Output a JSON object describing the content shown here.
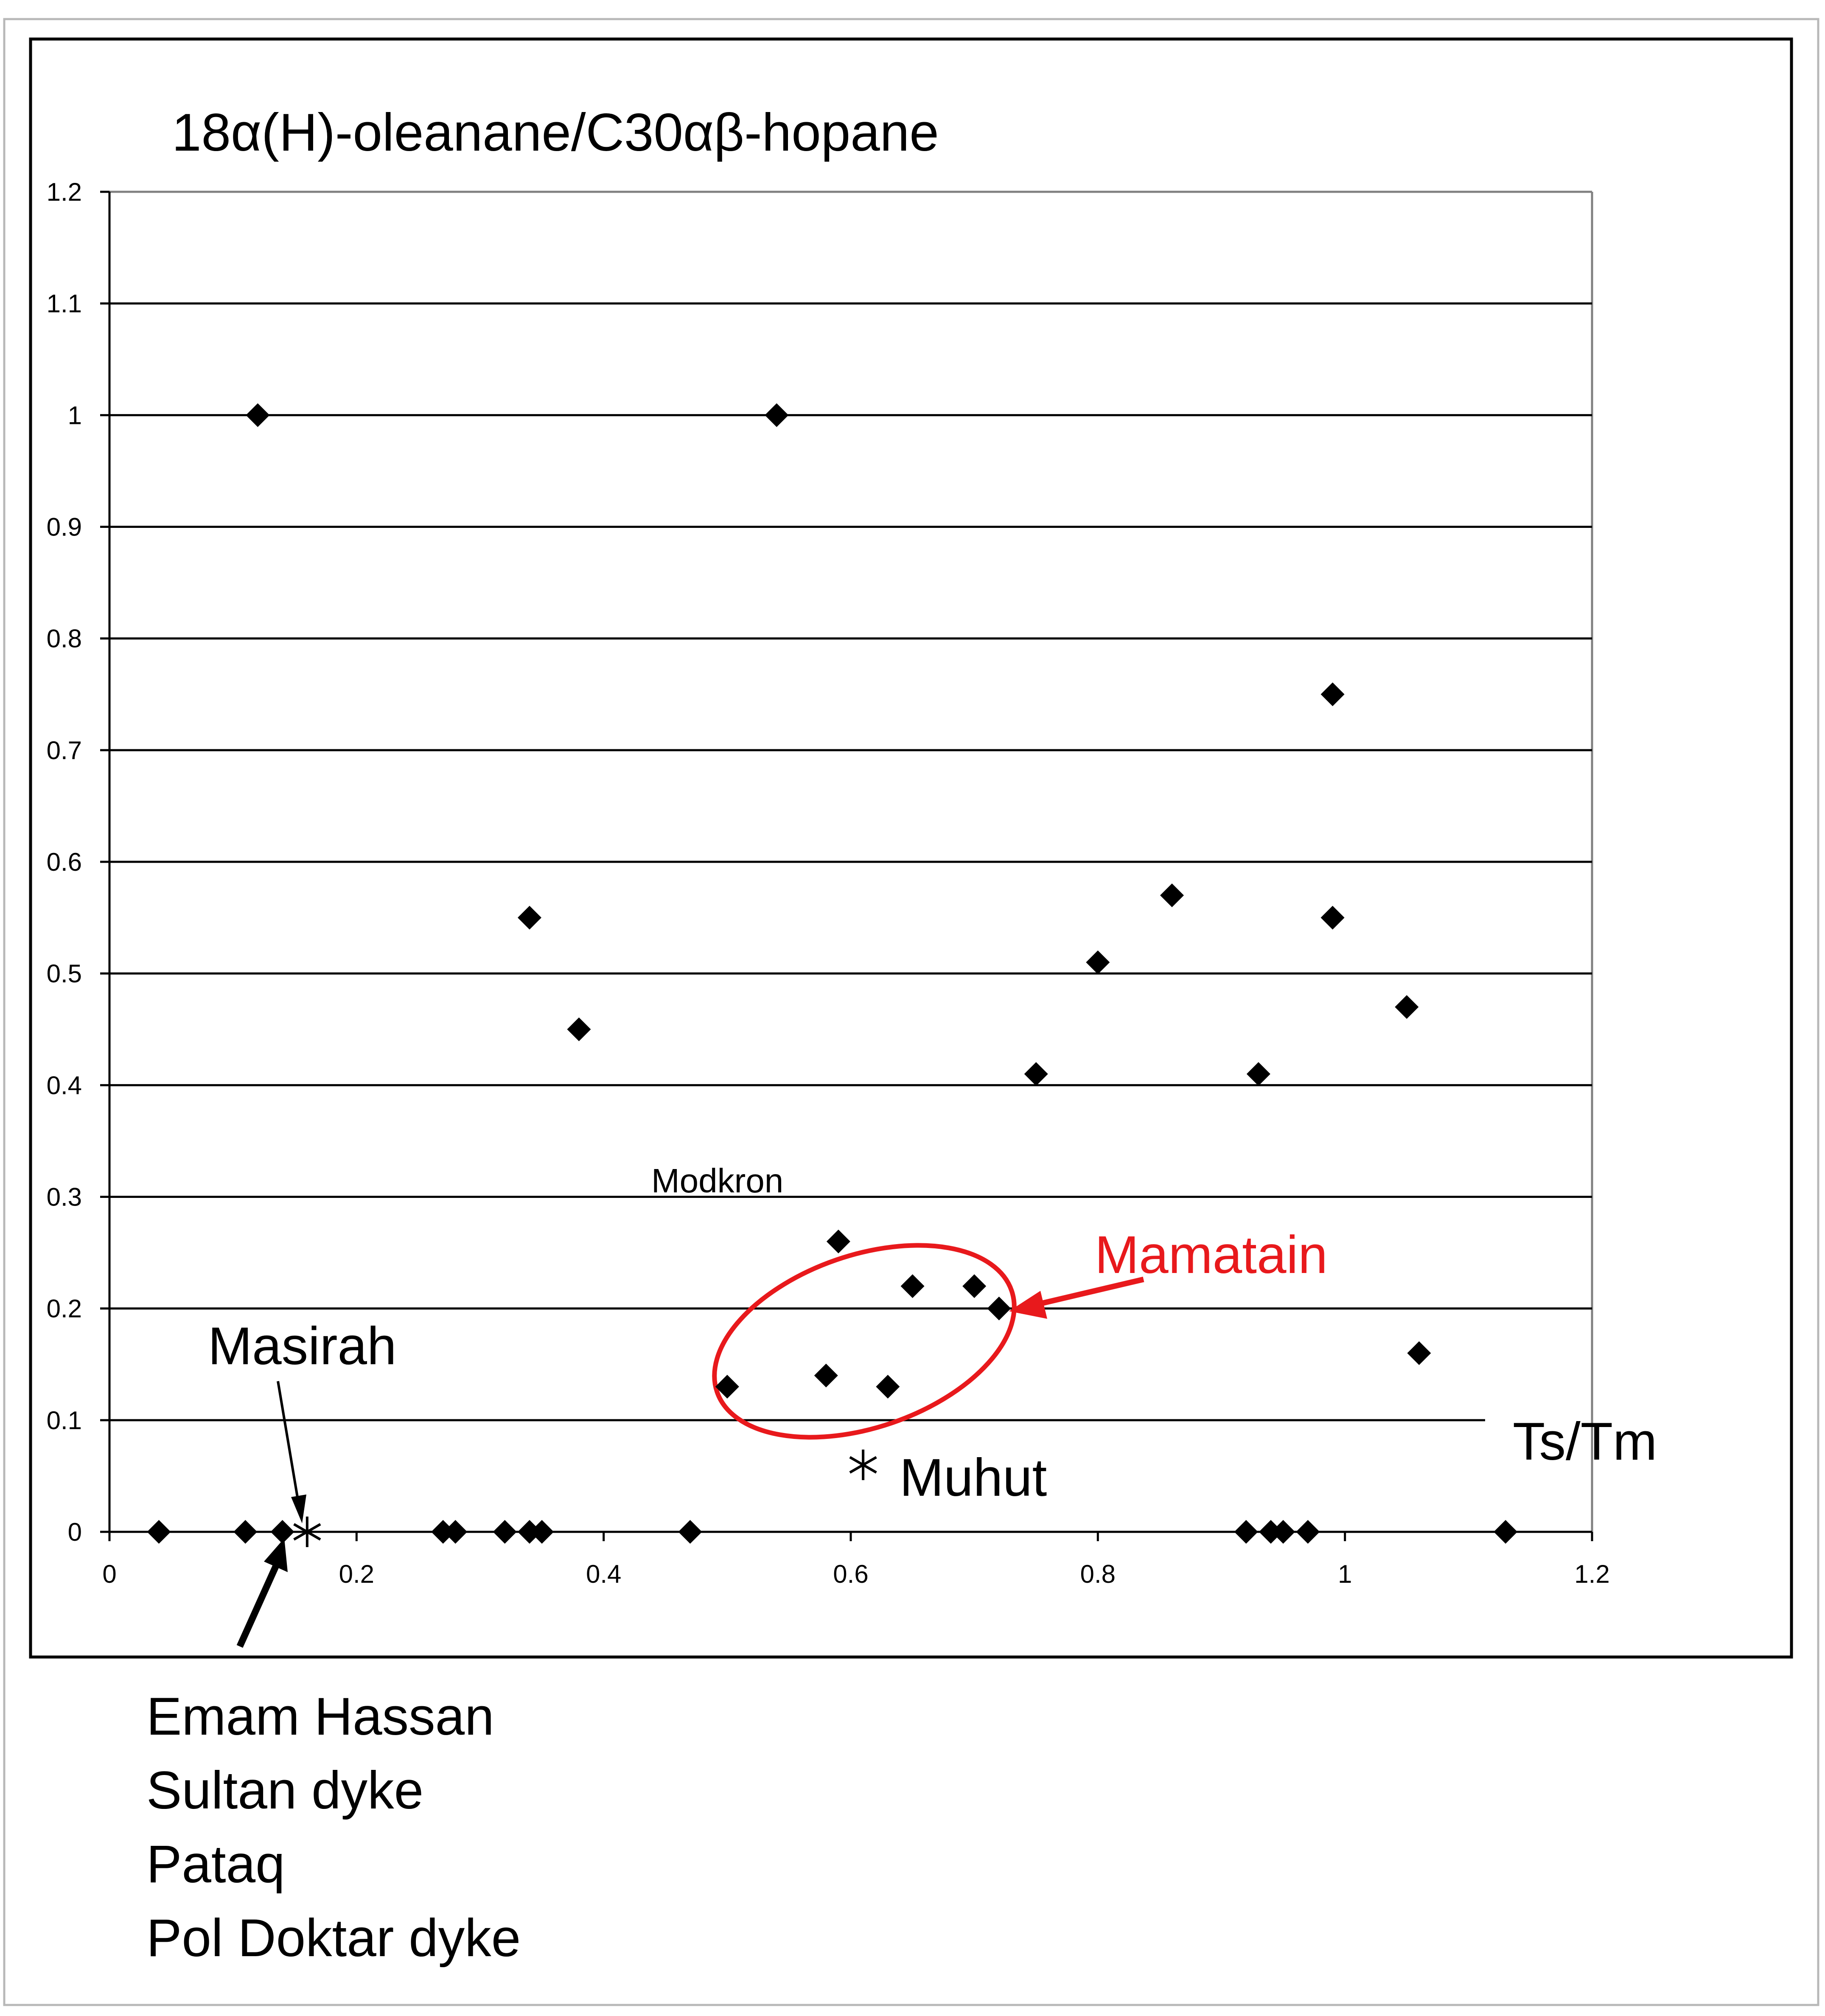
{
  "chart_data": {
    "type": "scatter",
    "title": "18α(H)-oleanane/C30αβ-hopane",
    "xlabel": "Ts/Tm",
    "ylabel": "",
    "xlim": [
      0,
      1.2
    ],
    "ylim": [
      0,
      1.2
    ],
    "xticks": [
      "0",
      "0.2",
      "0.4",
      "0.6",
      "0.8",
      "1",
      "1.2"
    ],
    "yticks": [
      "0",
      "0.1",
      "0.2",
      "0.3",
      "0.4",
      "0.5",
      "0.6",
      "0.7",
      "0.8",
      "0.9",
      "1",
      "1.1",
      "1.2"
    ],
    "grid": "horizontal",
    "series": [
      {
        "marker": "diamond",
        "color": "#000000",
        "points": [
          {
            "x": 0.04,
            "y": 0
          },
          {
            "x": 0.11,
            "y": 0
          },
          {
            "x": 0.14,
            "y": 0
          },
          {
            "x": 0.27,
            "y": 0
          },
          {
            "x": 0.28,
            "y": 0
          },
          {
            "x": 0.32,
            "y": 0
          },
          {
            "x": 0.34,
            "y": 0
          },
          {
            "x": 0.35,
            "y": 0
          },
          {
            "x": 0.47,
            "y": 0
          },
          {
            "x": 0.92,
            "y": 0
          },
          {
            "x": 0.94,
            "y": 0
          },
          {
            "x": 0.95,
            "y": 0
          },
          {
            "x": 0.97,
            "y": 0
          },
          {
            "x": 1.13,
            "y": 0
          },
          {
            "x": 0.12,
            "y": 1.0
          },
          {
            "x": 0.54,
            "y": 1.0
          },
          {
            "x": 0.34,
            "y": 0.55
          },
          {
            "x": 0.38,
            "y": 0.45
          },
          {
            "x": 0.75,
            "y": 0.41
          },
          {
            "x": 0.8,
            "y": 0.51
          },
          {
            "x": 0.86,
            "y": 0.57
          },
          {
            "x": 0.93,
            "y": 0.41
          },
          {
            "x": 0.99,
            "y": 0.75
          },
          {
            "x": 0.99,
            "y": 0.55
          },
          {
            "x": 1.05,
            "y": 0.47
          },
          {
            "x": 1.06,
            "y": 0.16
          },
          {
            "x": 0.5,
            "y": 0.13
          },
          {
            "x": 0.58,
            "y": 0.14
          },
          {
            "x": 0.59,
            "y": 0.26
          },
          {
            "x": 0.63,
            "y": 0.13
          },
          {
            "x": 0.65,
            "y": 0.22
          },
          {
            "x": 0.7,
            "y": 0.22
          },
          {
            "x": 0.72,
            "y": 0.2
          }
        ]
      },
      {
        "marker": "asterisk",
        "color": "#000000",
        "points": [
          {
            "x": 0.16,
            "y": 0
          },
          {
            "x": 0.61,
            "y": 0.06
          }
        ]
      }
    ],
    "annotations": {
      "masirah": "Masirah",
      "modkron": "Modkron",
      "mamatain": "Mamatain",
      "muhut": "Muhut",
      "emam_hassan": "Emam Hassan",
      "sultan_dyke": "Sultan dyke",
      "pataq": "Pataq",
      "pol_doktar_dyke": "Pol Doktar dyke"
    },
    "colors": {
      "mamatain": "#e8191c"
    }
  }
}
